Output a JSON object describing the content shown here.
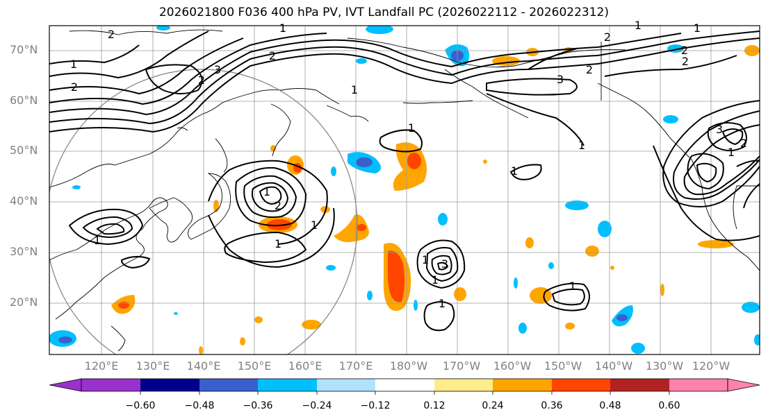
{
  "title": "2026021800 F036 400 hPa PV, IVT Landfall PC (2026022112 - 2026022312)",
  "lat_labels": [
    "70°N",
    "60°N",
    "50°N",
    "40°N",
    "30°N",
    "20°N"
  ],
  "lon_labels": [
    "120°E",
    "130°E",
    "140°E",
    "150°E",
    "160°E",
    "170°E",
    "180°W",
    "170°W",
    "160°W",
    "150°W",
    "140°W",
    "130°W",
    "120°W"
  ],
  "colorbar": {
    "ticks": [
      "−0.60",
      "−0.48",
      "−0.36",
      "−0.24",
      "−0.12",
      "0.12",
      "0.24",
      "0.36",
      "0.48",
      "0.60"
    ],
    "colors": [
      "#9932cc",
      "#00008b",
      "#3a5fcd",
      "#00bfff",
      "#b0e2ff",
      "#ffffff",
      "#ffec8b",
      "#ffa500",
      "#ff4500",
      "#b22222",
      "#ff82ab"
    ],
    "extend": "both"
  },
  "contour_labels": [
    "2",
    "1",
    "2",
    "3",
    "2",
    "1",
    "2",
    "1",
    "2",
    "2",
    "3",
    "2",
    "1",
    "3",
    "1",
    "1",
    "1",
    "1",
    "2",
    "1",
    "1",
    "1",
    "1",
    "1",
    "1",
    "2",
    "2",
    "3",
    "1",
    "1",
    "1"
  ],
  "map": {
    "region": "North Pacific",
    "lon_range": [
      "110°E",
      "115°W"
    ],
    "lat_range": [
      "10°N",
      "75°N"
    ],
    "grid": true,
    "landfall_circle": "Japan",
    "contour_color": "#000000",
    "coastline_color": "#000000",
    "grid_color": "#999999"
  }
}
